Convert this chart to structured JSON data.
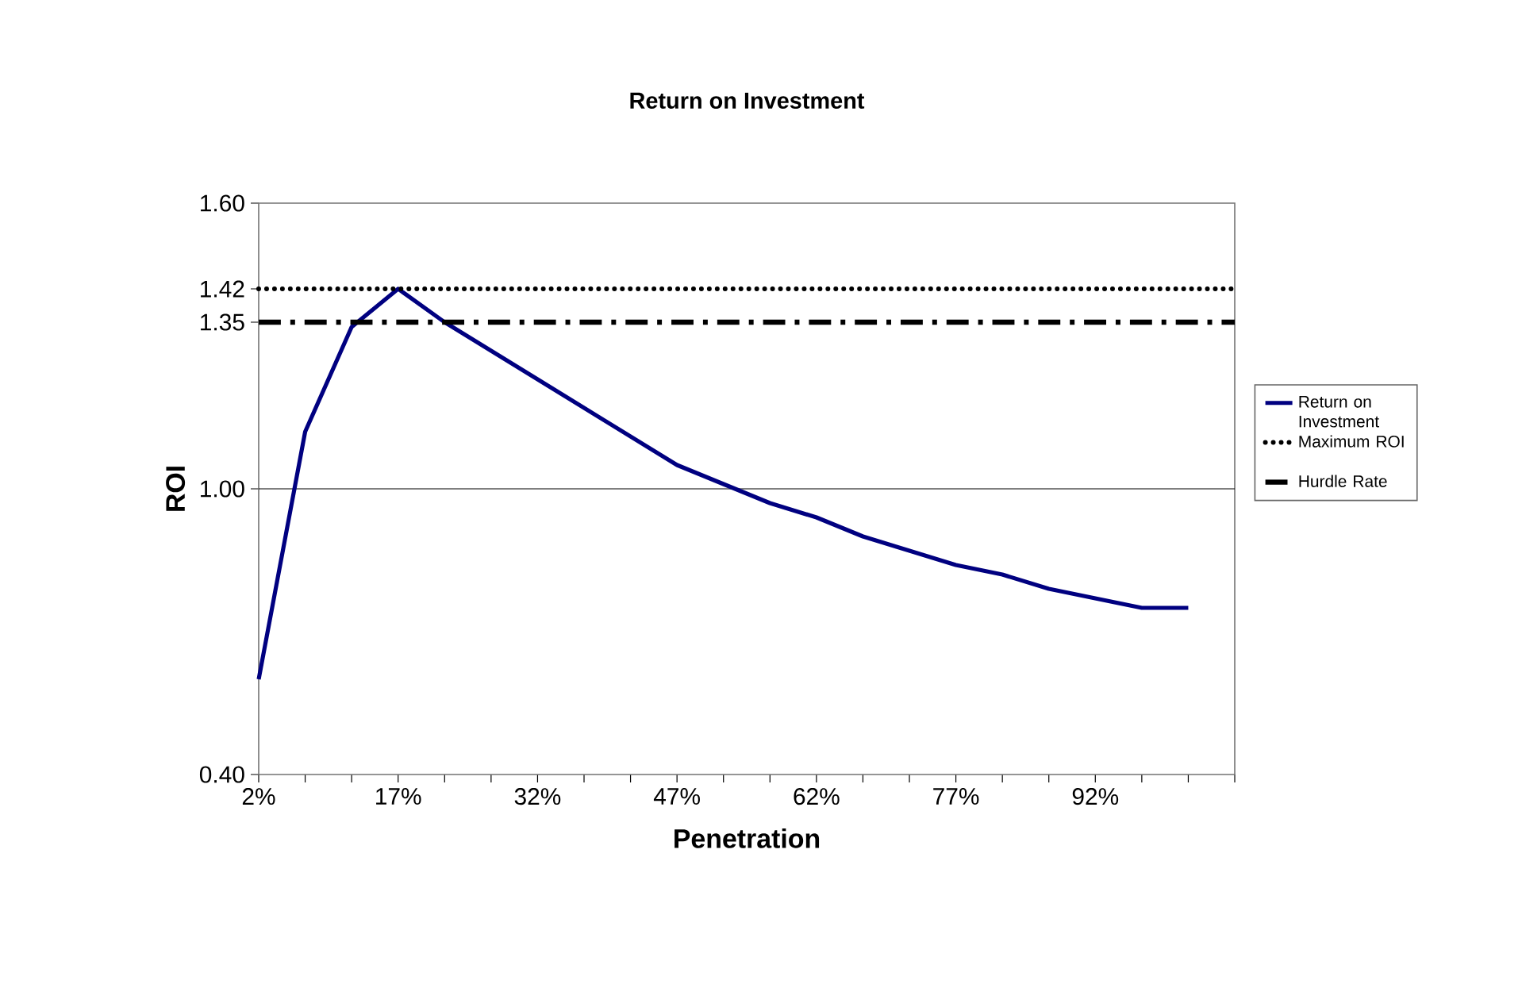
{
  "chart_data": {
    "type": "line",
    "title": "Return on Investment",
    "xlabel": "Penetration",
    "ylabel": "ROI",
    "categories": [
      "2%",
      null,
      null,
      "17%",
      null,
      null,
      "32%",
      null,
      null,
      "47%",
      null,
      null,
      "62%",
      null,
      null,
      "77%",
      null,
      null,
      "92%",
      null,
      null,
      null
    ],
    "series": [
      {
        "name": "Return on Investment",
        "color": "#000080",
        "line_style": "solid",
        "values": [
          0.6,
          1.12,
          1.34,
          1.42,
          1.35,
          1.29,
          1.23,
          1.17,
          1.11,
          1.05,
          1.01,
          0.97,
          0.94,
          0.9,
          0.87,
          0.84,
          0.82,
          0.79,
          0.77,
          0.75,
          0.75,
          null
        ]
      },
      {
        "name": "Maximum ROI",
        "color": "#000000",
        "line_style": "dotted",
        "values": [
          1.42,
          1.42,
          1.42,
          1.42,
          1.42,
          1.42,
          1.42,
          1.42,
          1.42,
          1.42,
          1.42,
          1.42,
          1.42,
          1.42,
          1.42,
          1.42,
          1.42,
          1.42,
          1.42,
          1.42,
          1.42,
          1.42
        ]
      },
      {
        "name": "Hurdle Rate",
        "color": "#000000",
        "line_style": "dashdot",
        "values": [
          1.35,
          1.35,
          1.35,
          1.35,
          1.35,
          1.35,
          1.35,
          1.35,
          1.35,
          1.35,
          1.35,
          1.35,
          1.35,
          1.35,
          1.35,
          1.35,
          1.35,
          1.35,
          1.35,
          1.35,
          1.35,
          1.35
        ]
      }
    ],
    "ylim": [
      0.4,
      1.6
    ],
    "yticks": [
      {
        "value": 0.4,
        "label": "0.40"
      },
      {
        "value": 1.0,
        "label": "1.00"
      },
      {
        "value": 1.35,
        "label": "1.35"
      },
      {
        "value": 1.42,
        "label": "1.42"
      },
      {
        "value": 1.6,
        "label": "1.60"
      }
    ],
    "ref_lines": [
      {
        "axis": "y",
        "value": 1.0,
        "color": "#000000",
        "line_style": "solid"
      }
    ],
    "legend": "right",
    "marker": "none",
    "grid": false
  }
}
